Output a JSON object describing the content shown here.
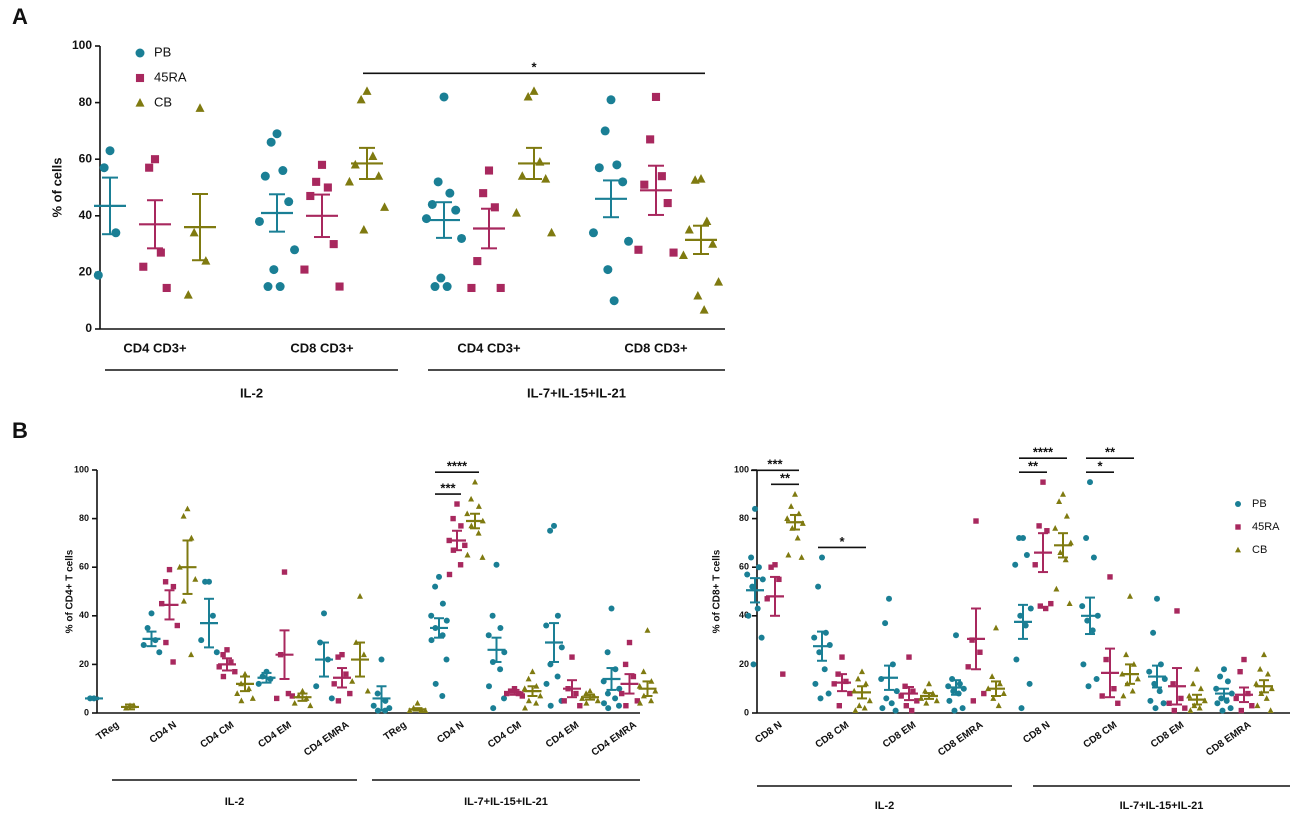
{
  "chart_data": [
    {
      "type": "dotplot",
      "panel_label": "A",
      "ylabel": "% of cells",
      "ylim": [
        0,
        100
      ],
      "yticks": [
        0,
        20,
        40,
        60,
        80,
        100
      ],
      "legend": "upper left",
      "groups": [
        {
          "label": "IL-2",
          "categories": [
            "CD4 CD3+",
            "CD8 CD3+"
          ]
        },
        {
          "label": "IL-7+IL-15+IL-21",
          "categories": [
            "CD4 CD3+",
            "CD8 CD3+"
          ]
        }
      ],
      "series": [
        {
          "name": "PB",
          "color": "#1a7f95",
          "marker": "circle",
          "points": [
            [
              63,
              57,
              34,
              19
            ],
            [
              69,
              66,
              56,
              54,
              45,
              38,
              28,
              21,
              15,
              15
            ],
            [
              82,
              52,
              48,
              44,
              42,
              39,
              32,
              18,
              15,
              15
            ],
            [
              81,
              70,
              58,
              57,
              52,
              34,
              31,
              21,
              10
            ]
          ],
          "mean": [
            43.5,
            41,
            38.5,
            46
          ],
          "sem": [
            10,
            6.6,
            6.3,
            6.5
          ]
        },
        {
          "name": "45RA",
          "color": "#a8285e",
          "marker": "square",
          "points": [
            [
              60,
              57,
              27,
              22,
              14.5
            ],
            [
              58,
              52,
              50,
              47,
              30,
              21,
              15
            ],
            [
              56,
              48,
              43,
              24,
              14.5,
              14.5
            ],
            [
              82,
              67,
              54,
              51,
              44.5,
              28,
              27
            ]
          ],
          "mean": [
            37,
            40,
            35.5,
            49
          ],
          "sem": [
            8.5,
            7.5,
            7,
            8.7
          ]
        },
        {
          "name": "CB",
          "color": "#7f7a10",
          "marker": "triangle",
          "points": [
            [
              78,
              34,
              24,
              12
            ],
            [
              84,
              81,
              61,
              58,
              54,
              52,
              43,
              35
            ],
            [
              84,
              82,
              59,
              54,
              53,
              41,
              34
            ],
            [
              53,
              52.6,
              38,
              35,
              30,
              26,
              16.6,
              11.7,
              6.7
            ]
          ],
          "mean": [
            36,
            58.5,
            58.5,
            31.5
          ],
          "sem": [
            11.7,
            5.5,
            5.5,
            5
          ]
        }
      ],
      "significance": [
        {
          "label": "*",
          "from": {
            "category": 1,
            "series": 2
          },
          "to": {
            "category": 3,
            "series": 2
          }
        }
      ]
    },
    {
      "type": "dotplot",
      "panel_label": "B",
      "ylabel": "% of CD4+ T cells",
      "ylim": [
        0,
        100
      ],
      "yticks": [
        0,
        20,
        40,
        60,
        80,
        100
      ],
      "groups": [
        {
          "label": "IL-2",
          "categories": [
            "TReg",
            "CD4 N",
            "CD4 CM",
            "CD4 EM",
            "CD4 EMRA"
          ]
        },
        {
          "label": "IL-7+IL-15+IL-21",
          "categories": [
            "TReg",
            "CD4 N",
            "CD4 CM",
            "CD4 EM",
            "CD4 EMRA"
          ]
        }
      ],
      "series": [
        {
          "color": "#1a7f95",
          "marker": "circle",
          "points": [
            [
              6,
              6
            ],
            [
              41,
              35,
              30,
              28,
              25
            ],
            [
              54,
              54,
              40,
              30,
              25
            ],
            [
              17,
              15,
              14,
              12
            ],
            [
              41,
              29,
              22,
              11,
              6
            ],
            [
              22,
              8,
              5,
              3,
              2,
              1,
              1
            ],
            [
              56,
              52,
              45,
              40,
              38,
              35,
              32,
              30,
              22,
              12,
              7
            ],
            [
              61,
              40,
              35,
              32,
              25,
              21,
              18,
              11,
              6,
              2
            ],
            [
              77,
              75,
              40,
              36,
              27,
              20,
              15,
              12,
              5,
              3
            ],
            [
              43,
              25,
              18,
              13,
              10,
              8,
              6,
              4,
              3,
              2
            ]
          ],
          "mean": [
            6,
            30.5,
            37,
            14.5,
            22,
            6,
            35,
            26,
            29,
            14
          ],
          "sem": [
            0.3,
            3,
            10,
            2,
            7,
            5,
            4,
            5,
            8,
            4.5
          ]
        },
        {
          "color": "#a8285e",
          "marker": "square",
          "points": [
            [],
            [
              59,
              54,
              52,
              45,
              36,
              29,
              21
            ],
            [
              26,
              24,
              21,
              19,
              17,
              15
            ],
            [
              58,
              24,
              8,
              6,
              7
            ],
            [
              24,
              23,
              16,
              12,
              8,
              5
            ],
            [],
            [
              86,
              80,
              77,
              71,
              69,
              67,
              61,
              57
            ],
            [
              10,
              9,
              8,
              8,
              7
            ],
            [
              23,
              10,
              8,
              5,
              3
            ],
            [
              29,
              20,
              15,
              8,
              5,
              3
            ]
          ],
          "mean": [
            null,
            44.5,
            20,
            24,
            14.5,
            null,
            71,
            8.5,
            10,
            12
          ],
          "sem": [
            null,
            6,
            2.5,
            10,
            4,
            null,
            4,
            1,
            3.5,
            4
          ]
        },
        {
          "color": "#7f7a10",
          "marker": "triangle",
          "points": [
            [
              3,
              2,
              3
            ],
            [
              84,
              81,
              72,
              60,
              55,
              46,
              24
            ],
            [
              16,
              12,
              10,
              8,
              6,
              5
            ],
            [
              9,
              7,
              6,
              4,
              3
            ],
            [
              48,
              29,
              24,
              13,
              9
            ],
            [
              4,
              2,
              1,
              1,
              1
            ],
            [
              95,
              88,
              85,
              82,
              79,
              77,
              74,
              65,
              64
            ],
            [
              17,
              14,
              11,
              10,
              7,
              5,
              4,
              2
            ],
            [
              9,
              8,
              7,
              6,
              5,
              4
            ],
            [
              34,
              17,
              13,
              11,
              9,
              7,
              5,
              4
            ]
          ],
          "mean": [
            2.5,
            60,
            12,
            6.5,
            22,
            1.5,
            79,
            9,
            6.5,
            10
          ],
          "sem": [
            1,
            11,
            3,
            1.5,
            7,
            0.5,
            3,
            2,
            1,
            3
          ]
        }
      ],
      "significance": [
        {
          "label": "***",
          "from": {
            "category": 6,
            "series": 0
          },
          "to": {
            "category": 6,
            "series": 1
          }
        },
        {
          "label": "****",
          "from": {
            "category": 6,
            "series": 0
          },
          "to": {
            "category": 6,
            "series": 2
          }
        }
      ]
    },
    {
      "type": "dotplot",
      "ylabel": "% of CD8+ T cells",
      "ylim": [
        0,
        100
      ],
      "yticks": [
        0,
        20,
        40,
        60,
        80,
        100
      ],
      "legend": "upper right",
      "groups": [
        {
          "label": "IL-2",
          "categories": [
            "CD8 N",
            "CD8 CM",
            "CD8 EM",
            "CD8 EMRA"
          ]
        },
        {
          "label": "IL-7+IL-15+IL-21",
          "categories": [
            "CD8 N",
            "CD8 CM",
            "CD8 EM",
            "CD8 EMRA"
          ]
        }
      ],
      "series": [
        {
          "name": "PB",
          "color": "#1a7f95",
          "marker": "circle",
          "points": [
            [
              84,
              64,
              60,
              57,
              55,
              52,
              43,
              40,
              31,
              20
            ],
            [
              64,
              52,
              33,
              31,
              28,
              25,
              18,
              12,
              8,
              6
            ],
            [
              47,
              37,
              20,
              14,
              9,
              6,
              4,
              2,
              1
            ],
            [
              32,
              14,
              12,
              11,
              10,
              9,
              8,
              5,
              2,
              1
            ],
            [
              72,
              72,
              65,
              61,
              43,
              40,
              36,
              22,
              12,
              2
            ],
            [
              95,
              72,
              64,
              44,
              40,
              38,
              34,
              20,
              14,
              11
            ],
            [
              47,
              33,
              20,
              17,
              14,
              12,
              9,
              5,
              4,
              2
            ],
            [
              18,
              15,
              13,
              10,
              8,
              6,
              5,
              4,
              2,
              1
            ]
          ],
          "mean": [
            50.5,
            27.5,
            14.5,
            10.5,
            37.5,
            40,
            15,
            8
          ],
          "sem": [
            5,
            6,
            5,
            3,
            7,
            7.5,
            4.5,
            2
          ]
        },
        {
          "name": "45RA",
          "color": "#a8285e",
          "marker": "square",
          "points": [
            [
              61,
              60,
              55,
              47,
              16
            ],
            [
              23,
              16,
              13,
              12,
              8,
              3
            ],
            [
              23,
              11,
              9,
              7,
              5,
              3,
              1
            ],
            [
              79,
              30,
              25,
              19,
              8,
              5
            ],
            [
              95,
              77,
              75,
              61,
              45,
              44,
              43
            ],
            [
              56,
              22,
              10,
              7,
              4
            ],
            [
              42,
              12,
              6,
              4,
              2,
              1
            ],
            [
              22,
              17,
              8,
              6,
              3,
              1
            ]
          ],
          "mean": [
            48,
            12.5,
            8,
            30.5,
            66,
            16.5,
            11,
            7.5
          ],
          "sem": [
            8,
            3.5,
            2.7,
            12.5,
            8,
            10,
            7.5,
            3
          ]
        },
        {
          "name": "CB",
          "color": "#7f7a10",
          "marker": "triangle",
          "points": [
            [
              90,
              85,
              82,
              80,
              78,
              76,
              72,
              65,
              64
            ],
            [
              17,
              14,
              12,
              9,
              5,
              3,
              2,
              1
            ],
            [
              12,
              9,
              8,
              6,
              5,
              4
            ],
            [
              35,
              15,
              12,
              10,
              8,
              6,
              3
            ],
            [
              90,
              87,
              81,
              76,
              70,
              66,
              63,
              51,
              45
            ],
            [
              48,
              24,
              20,
              16,
              14,
              12,
              9,
              7
            ],
            [
              18,
              12,
              10,
              7,
              5,
              3,
              2,
              1
            ],
            [
              24,
              18,
              16,
              12,
              10,
              8,
              6,
              3,
              1
            ]
          ],
          "mean": [
            78.5,
            8.5,
            7,
            10,
            69,
            16,
            5.5,
            11
          ],
          "sem": [
            3,
            2.5,
            1.2,
            3,
            5,
            4,
            2,
            2.5
          ]
        }
      ],
      "significance": [
        {
          "label": "**",
          "from": {
            "category": 0,
            "series": 1
          },
          "to": {
            "category": 0,
            "series": 2
          }
        },
        {
          "label": "***",
          "from": {
            "category": 0,
            "series": 0
          },
          "to": {
            "category": 0,
            "series": 2
          }
        },
        {
          "label": "*",
          "from": {
            "category": 1,
            "series": 0
          },
          "to": {
            "category": 1,
            "series": 2
          }
        },
        {
          "label": "**",
          "from": {
            "category": 4,
            "series": 0
          },
          "to": {
            "category": 4,
            "series": 1
          }
        },
        {
          "label": "****",
          "from": {
            "category": 4,
            "series": 0
          },
          "to": {
            "category": 4,
            "series": 2
          }
        },
        {
          "label": "*",
          "from": {
            "category": 5,
            "series": 0
          },
          "to": {
            "category": 5,
            "series": 1
          }
        },
        {
          "label": "**",
          "from": {
            "category": 5,
            "series": 0
          },
          "to": {
            "category": 5,
            "series": 2
          }
        }
      ]
    }
  ]
}
